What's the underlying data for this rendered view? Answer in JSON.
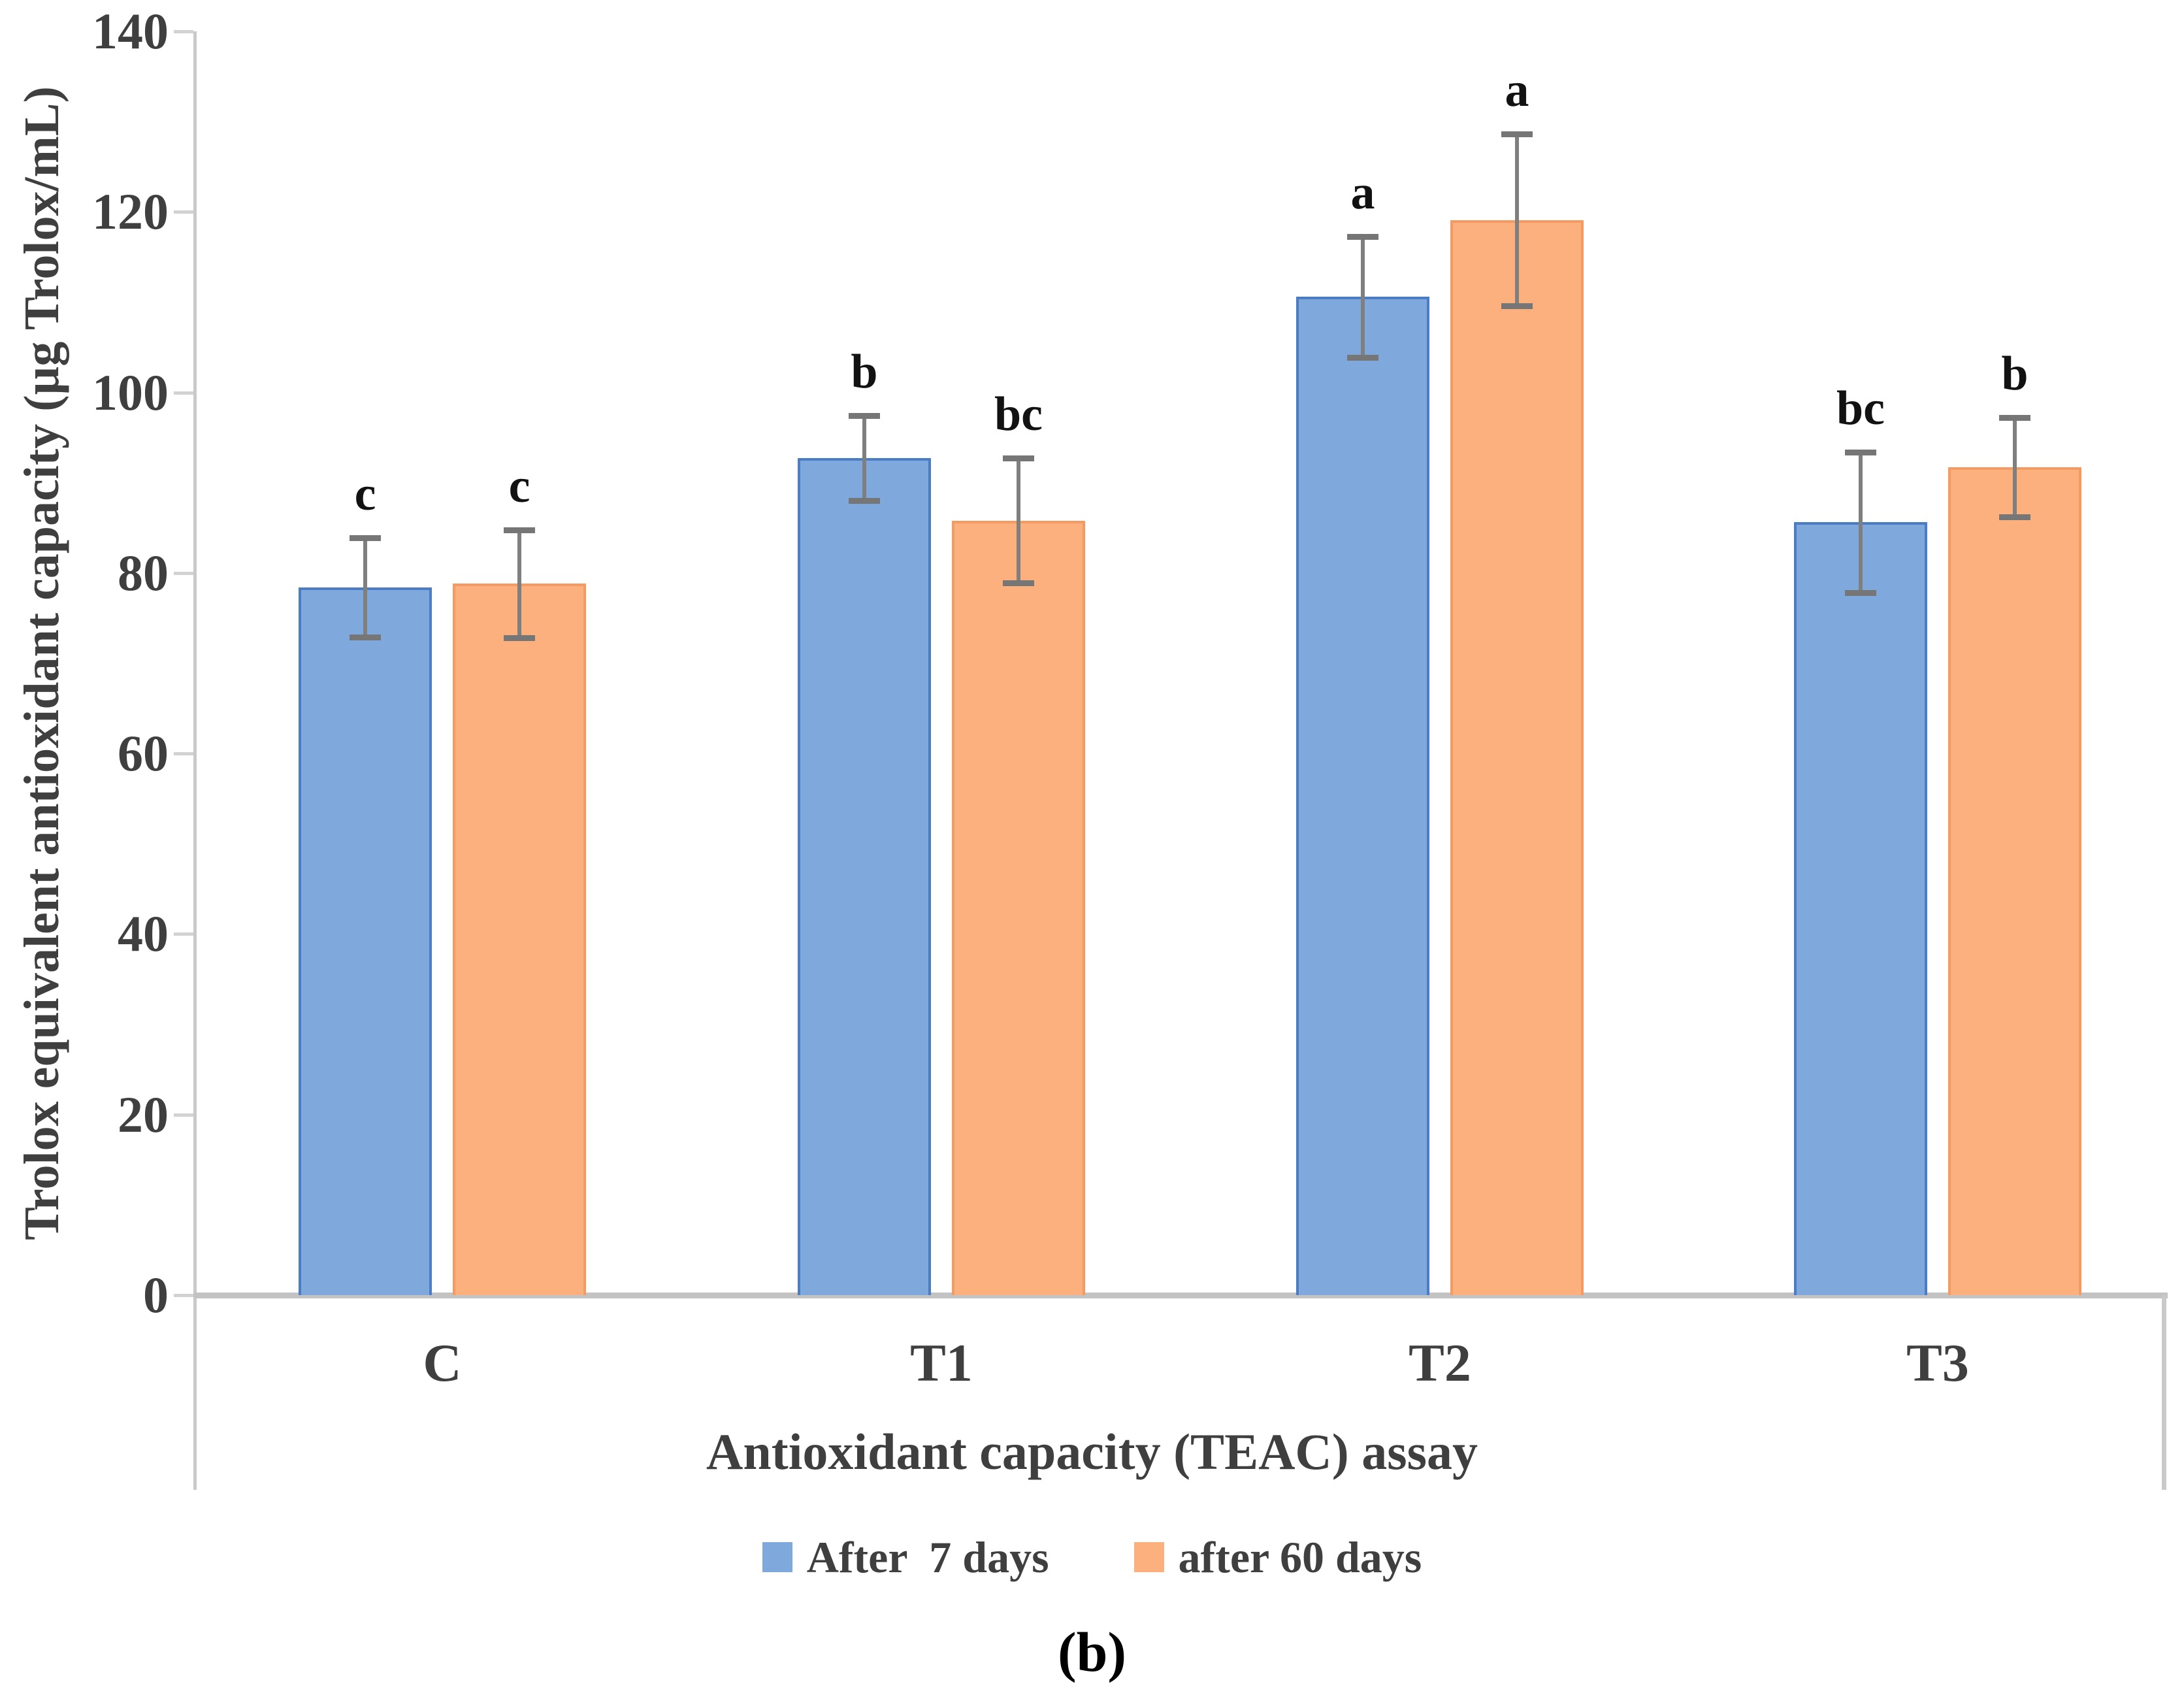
{
  "figure": {
    "caption": "(b)"
  },
  "chart_data": {
    "type": "bar",
    "title": "",
    "xlabel": "Antioxidant capacity (TEAC) assay",
    "ylabel": "Trolox equivalent antioxidant capacity (µg Trolox/mL)",
    "categories": [
      "C",
      "T1",
      "T2",
      "T3"
    ],
    "series": [
      {
        "name": "After  7 days",
        "color": "#7FA8DC",
        "border_color": "#4C7DC4",
        "values": [
          78.4,
          92.7,
          110.6,
          85.6
        ],
        "errors": [
          5.5,
          4.7,
          6.7,
          7.8
        ],
        "letters": [
          "c",
          "b",
          "a",
          "bc"
        ]
      },
      {
        "name": "after 60 days",
        "color": "#FBB07E",
        "border_color": "#F49B63",
        "values": [
          78.8,
          85.8,
          119.1,
          91.7
        ],
        "errors": [
          6.0,
          6.9,
          9.5,
          5.5
        ],
        "letters": [
          "c",
          "bc",
          "a",
          "b"
        ]
      }
    ],
    "ylim": [
      0,
      140
    ],
    "ytick_step": 20,
    "yticks": [
      "0",
      "20",
      "40",
      "60",
      "80",
      "100",
      "120",
      "140"
    ],
    "grid": false,
    "legend_position": "bottom",
    "error_bar_color": "#7F7F7F",
    "axis_color": "#C9C9C9",
    "text_color": "#3F3F3F",
    "letter_color": "#121212"
  }
}
